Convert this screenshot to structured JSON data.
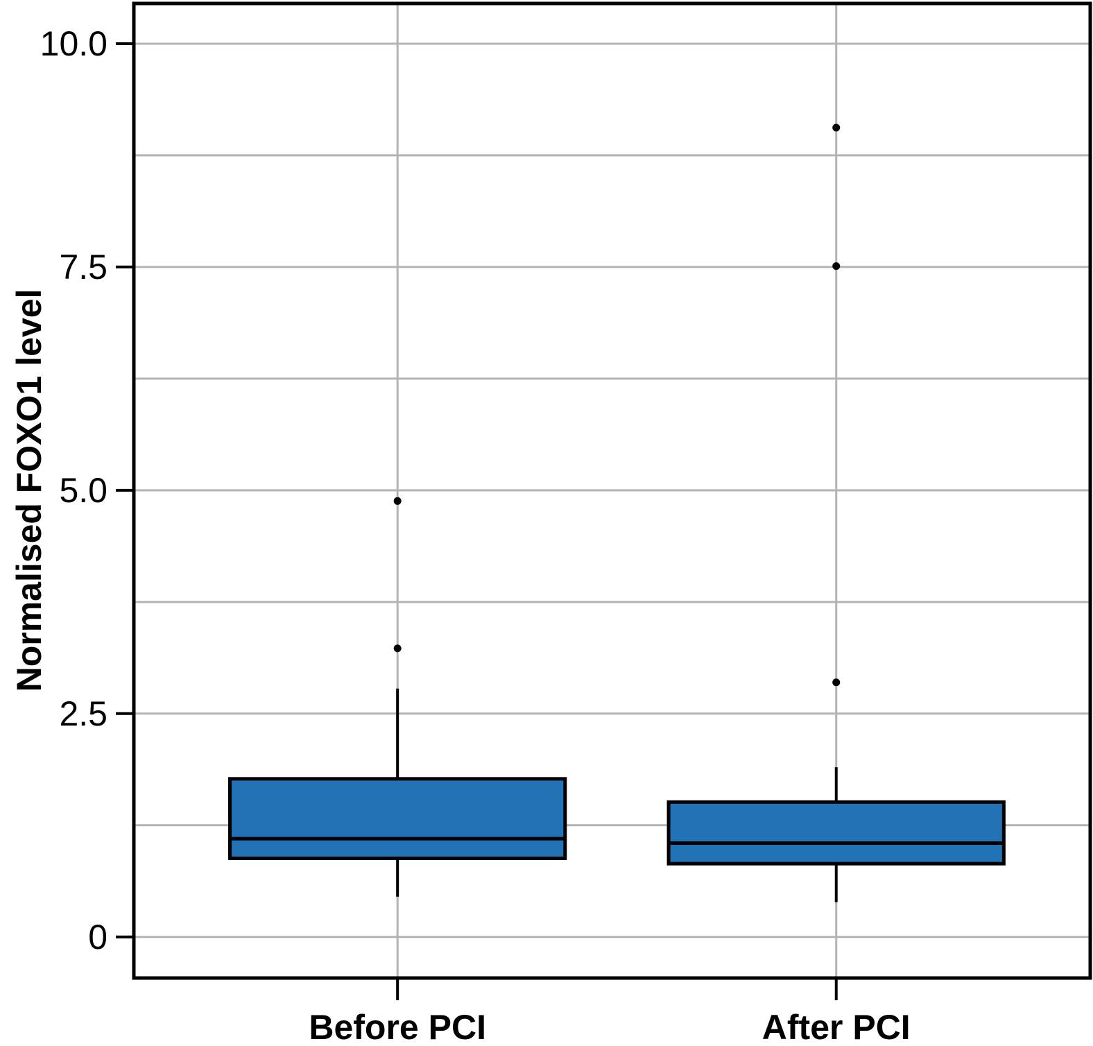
{
  "chart_data": {
    "type": "box",
    "title": "",
    "ylabel": "Normalised FOXO1 level",
    "xlabel": "",
    "categories": [
      "Before PCI",
      "After PCI"
    ],
    "series": [
      {
        "name": "Before PCI",
        "q1": 0.88,
        "median": 1.1,
        "q3": 1.77,
        "whisker_low": 0.45,
        "whisker_high": 2.78,
        "outliers": [
          3.23,
          4.88
        ]
      },
      {
        "name": "After PCI",
        "q1": 0.82,
        "median": 1.05,
        "q3": 1.51,
        "whisker_low": 0.39,
        "whisker_high": 1.9,
        "outliers": [
          2.85,
          7.51,
          9.06
        ]
      }
    ],
    "yticks": {
      "values": [
        0,
        2.5,
        5,
        7.5,
        10
      ],
      "labels": [
        "0",
        "2.5",
        "5.0",
        "7.5",
        "10.0"
      ]
    },
    "minor_grid_step": 1.25,
    "ylim": [
      -0.46,
      10.45
    ],
    "grid": true,
    "legend": "none",
    "colors": {
      "box_fill": "#2272b6",
      "box_stroke": "#000000",
      "median": "#000000",
      "whisker": "#000000",
      "outlier": "#000000",
      "grid": "#b3b3b3",
      "spine": "#000000",
      "text": "#000000"
    }
  }
}
